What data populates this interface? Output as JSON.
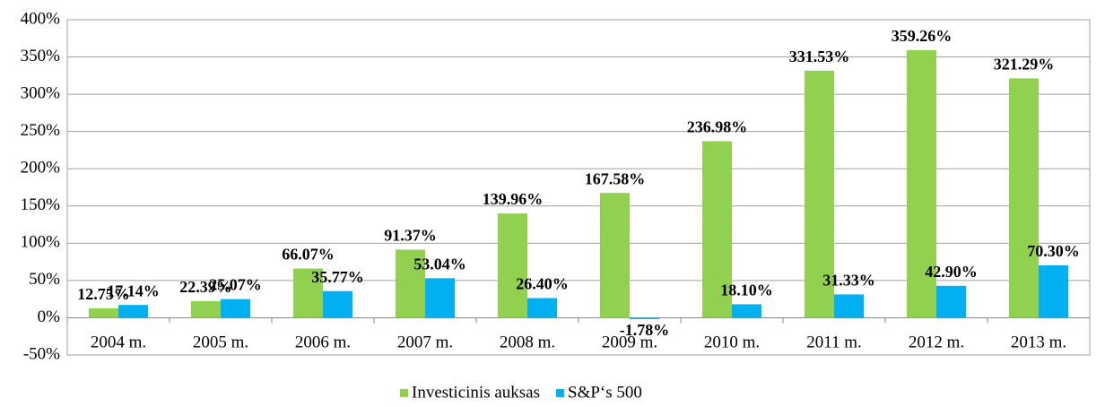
{
  "chart_data": {
    "type": "bar",
    "categories": [
      "2004 m.",
      "2005 m.",
      "2006 m.",
      "2007 m.",
      "2008 m.",
      "2009 m.",
      "2010 m.",
      "2011 m.",
      "2012 m.",
      "2013 m."
    ],
    "series": [
      {
        "name": "Investicinis auksas",
        "color": "#92d050",
        "values": [
          12.75,
          22.39,
          66.07,
          91.37,
          139.96,
          167.58,
          236.98,
          331.53,
          359.26,
          321.29
        ],
        "value_labels": [
          "12.75%",
          "22.39%",
          "66.07%",
          "91.37%",
          "139.96%",
          "167.58%",
          "236.98%",
          "331.53%",
          "359.26%",
          "321.29%"
        ]
      },
      {
        "name": "S&P‘s 500",
        "color": "#00b0f0",
        "values": [
          17.14,
          25.07,
          35.77,
          53.04,
          26.4,
          -1.78,
          18.1,
          31.33,
          42.9,
          70.3
        ],
        "value_labels": [
          "17.14%",
          "25.07%",
          "35.77%",
          "53.04%",
          "26.40%",
          "-1.78%",
          "18.10%",
          "31.33%",
          "42.90%",
          "70.30%"
        ]
      }
    ],
    "ylim": [
      -50,
      400
    ],
    "yticks": [
      {
        "value": -50,
        "label": "-50%"
      },
      {
        "value": 0,
        "label": "0%"
      },
      {
        "value": 50,
        "label": "50%"
      },
      {
        "value": 100,
        "label": "100%"
      },
      {
        "value": 150,
        "label": "150%"
      },
      {
        "value": 200,
        "label": "200%"
      },
      {
        "value": 250,
        "label": "250%"
      },
      {
        "value": 300,
        "label": "300%"
      },
      {
        "value": 350,
        "label": "350%"
      },
      {
        "value": 400,
        "label": "400%"
      }
    ],
    "grid": true,
    "legend": "bottom"
  }
}
